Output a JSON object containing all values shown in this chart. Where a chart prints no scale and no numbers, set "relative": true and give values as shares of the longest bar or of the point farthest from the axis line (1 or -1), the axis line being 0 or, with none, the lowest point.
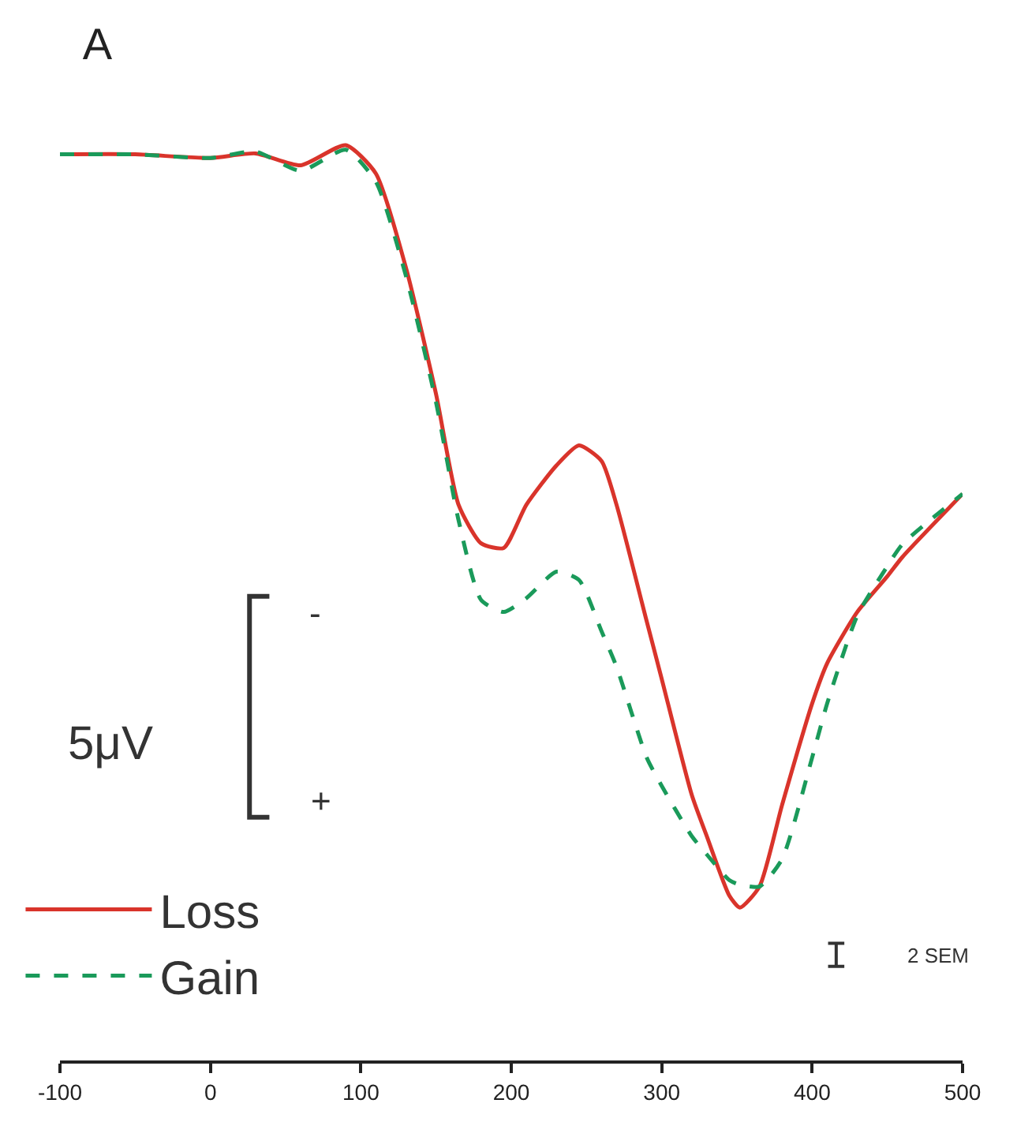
{
  "chart_data": {
    "type": "line",
    "title": "A",
    "relative": true,
    "x": [
      -100,
      -50,
      0,
      30,
      60,
      90,
      110,
      130,
      150,
      165,
      180,
      195,
      210,
      230,
      245,
      260,
      270,
      290,
      300,
      320,
      330,
      345,
      352,
      365,
      380,
      400,
      410,
      430,
      450,
      460,
      500
    ],
    "series": [
      {
        "name": "Loss",
        "color": "#d9342b",
        "line_style": "solid",
        "values": [
          0.99,
          0.99,
          0.986,
          0.991,
          0.978,
          1.0,
          0.969,
          0.866,
          0.728,
          0.607,
          0.565,
          0.56,
          0.607,
          0.65,
          0.672,
          0.655,
          0.607,
          0.48,
          0.417,
          0.29,
          0.245,
          0.18,
          0.167,
          0.19,
          0.279,
          0.39,
          0.434,
          0.49,
          0.529,
          0.55,
          0.619
        ]
      },
      {
        "name": "Gain",
        "color": "#1a9a5a",
        "line_style": "dashed",
        "values": [
          0.99,
          0.99,
          0.986,
          0.993,
          0.972,
          0.995,
          0.96,
          0.857,
          0.719,
          0.59,
          0.503,
          0.49,
          0.505,
          0.534,
          0.525,
          0.469,
          0.43,
          0.331,
          0.3,
          0.245,
          0.225,
          0.197,
          0.192,
          0.19,
          0.22,
          0.331,
          0.39,
          0.486,
          0.54,
          0.564,
          0.619
        ]
      }
    ],
    "xlim": [
      -100,
      500
    ],
    "xticks": [
      -100,
      0,
      100,
      200,
      300,
      400,
      500
    ],
    "tick_labels": "x",
    "legend": "bottom left",
    "marker": "none",
    "annotations": [
      "5μV",
      "-",
      "+",
      "2 SEM"
    ]
  }
}
